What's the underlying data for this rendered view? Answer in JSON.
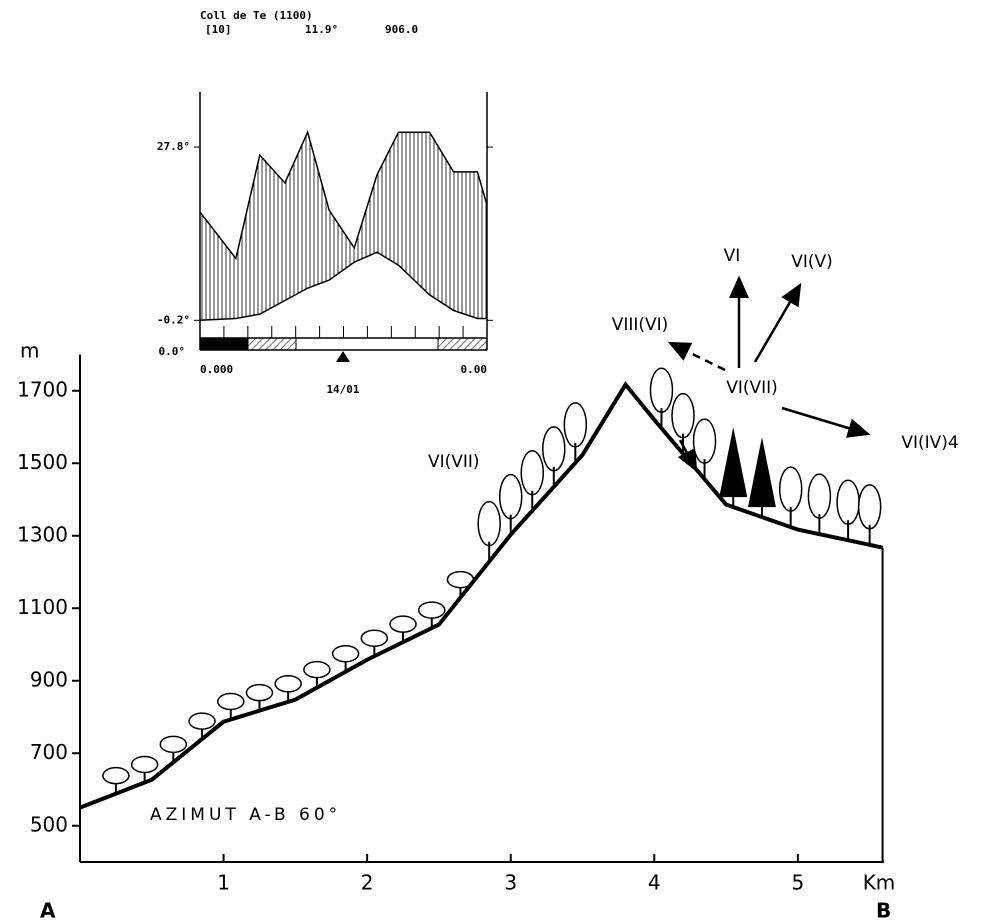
{
  "chart_data": [
    {
      "type": "line",
      "color": "#000000",
      "x": [
        0,
        0.5,
        1.0,
        1.5,
        2.0,
        2.5,
        3.0,
        3.5,
        3.8,
        4.0,
        4.5,
        5.0,
        5.5,
        5.59
      ],
      "values": [
        550,
        627,
        787,
        848,
        958,
        1055,
        1303,
        1523,
        1717,
        1620,
        1386,
        1317,
        1275,
        1267
      ],
      "xlim": [
        0,
        5.6
      ],
      "ylim": [
        400,
        1800
      ],
      "xticks": [
        1,
        2,
        3,
        4,
        5
      ],
      "yticks": [
        500,
        700,
        900,
        1100,
        1300,
        1500,
        1700
      ],
      "y_label": "m",
      "x_label": "Km",
      "start_label": "A",
      "end_label": "B",
      "annotations": [
        "AZIMUT A-B 60°",
        "VI(VII)",
        "VI",
        "VI(V)",
        "VIII(VI)",
        "VI(VII)",
        "VI(IV)4"
      ]
    },
    {
      "type": "area",
      "title": "Coll de Te (1100)",
      "subtitle": [
        "[10]",
        "11.9°",
        "906.0"
      ],
      "x": [
        0,
        1.5,
        2.5,
        3.55,
        4.5,
        5.4,
        6.45,
        7.4,
        8.3,
        9.6,
        10.6,
        11.6,
        12
      ],
      "series": [
        {
          "color": "#000000",
          "values": [
            17.3,
            9.8,
            26.5,
            22.0,
            30.2,
            17.6,
            11.5,
            23.3,
            30.2,
            30.2,
            23.8,
            23.8,
            18.4
          ]
        },
        {
          "color": "#000000",
          "values": [
            -0.2,
            0.1,
            0.8,
            3.0,
            5.0,
            6.3,
            9.2,
            10.8,
            8.7,
            3.9,
            1.4,
            0.1,
            0.1
          ]
        }
      ],
      "xlim": [
        0,
        12
      ],
      "ylim": [
        -5,
        36.7
      ],
      "yticks": [
        {
          "value": 27.8,
          "label": "27.8°"
        },
        {
          "value": -0.2,
          "label": "-0.2°"
        }
      ],
      "annotations": [
        "0.0°",
        "0.000",
        "14/01",
        "0.00"
      ]
    }
  ]
}
